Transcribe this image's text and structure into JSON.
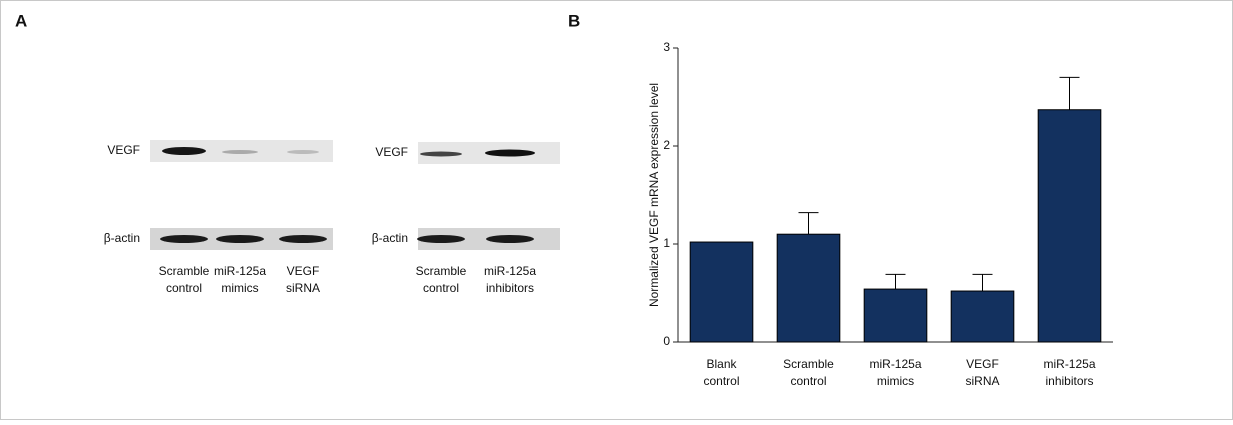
{
  "panels": {
    "a": "A",
    "b": "B"
  },
  "blots": [
    {
      "rows": [
        "VEGF",
        "β-actin"
      ],
      "lanes": [
        "Scramble control",
        "miR-125a mimics",
        "VEGF siRNA"
      ]
    },
    {
      "rows": [
        "VEGF",
        "β-actin"
      ],
      "lanes": [
        "Scramble control",
        "miR-125a inhibitors"
      ]
    }
  ],
  "chart_data": {
    "type": "bar",
    "y_label": "Normalized VEGF mRNA expression level",
    "categories": [
      "Blank control",
      "Scramble control",
      "miR-125a mimics",
      "VEGF siRNA",
      "miR-125a inhibitors"
    ],
    "values": [
      1.02,
      1.1,
      0.54,
      0.52,
      2.37
    ],
    "errors": [
      null,
      0.22,
      0.15,
      0.17,
      0.33
    ],
    "color": "#13315f",
    "ylim": [
      0,
      3
    ],
    "yticks": [
      0,
      1,
      2,
      3
    ],
    "grid": false
  }
}
